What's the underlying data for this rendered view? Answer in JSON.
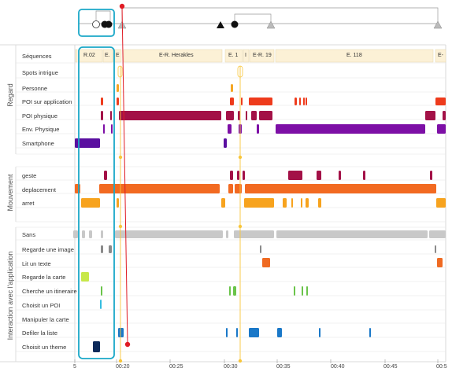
{
  "colors": {
    "seq_fill": "#fcf1d6",
    "seq_border": "#e6d7ae",
    "personne": "#f5a623",
    "poi_app": "#ee3b1c",
    "poi_phys": "#a31147",
    "env_phys": "#7d0fa6",
    "smartphone": "#5a0fa0",
    "geste": "#a31147",
    "deplacement": "#f26a21",
    "arret": "#f7a31e",
    "sans": "#c8c8c8",
    "image": "#8a8a8a",
    "texte": "#ef6a22",
    "carte": "#c8e84a",
    "itineraire": "#6ac44a",
    "choisir_poi": "#34bde0",
    "defiler": "#1a78c8",
    "theme": "#0d2a5a",
    "highlight": "#1aa8c8",
    "red_marker": "#e01b24",
    "yellow_marker": "#f8c63a"
  },
  "groups": [
    "Regard",
    "Mouvement",
    "Interaction avec l'application"
  ],
  "rows": {
    "sequences": "Séquences",
    "spots": "Spots intrigue",
    "personne": "Personne",
    "poi_app": "POI sur application",
    "poi_phys": "POI physique",
    "env_phys": "Env. Physique",
    "smartphone": "Smartphone",
    "geste": "geste",
    "deplacement": "deplacement",
    "arret": "arret",
    "sans": "Sans",
    "image": "Regarde une image",
    "texte": "Lit un texte",
    "carte": "Regarde la carte",
    "itineraire": "Cherche un itineraire",
    "choisir_poi": "Choisit un POI",
    "manipuler": "Manipuler la carte",
    "defiler": "Defiler la liste",
    "theme": "Choisit un theme"
  },
  "sequences": [
    "R.02",
    "E.",
    "E",
    "E-R. Herakles",
    "E. 1",
    "I",
    "E-R. 19",
    "E. 118",
    "E-"
  ],
  "ticks": [
    "5",
    "00:20",
    "00:25",
    "00:30",
    "00:35",
    "00:40",
    "00:45",
    "00:5"
  ]
}
